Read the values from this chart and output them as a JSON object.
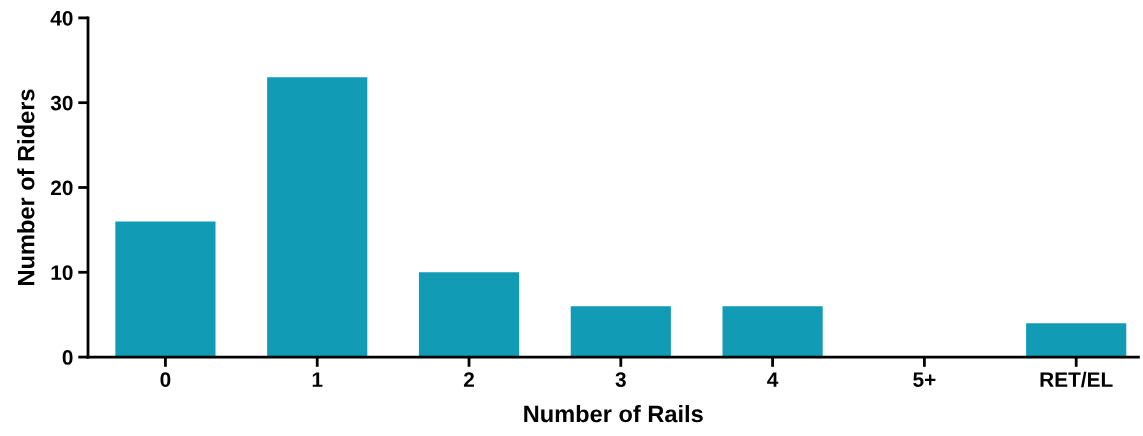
{
  "chart_data": {
    "type": "bar",
    "xlabel": "Number of Rails",
    "ylabel": "Number of Riders",
    "categories": [
      "0",
      "1",
      "2",
      "3",
      "4",
      "5+",
      "RET/EL"
    ],
    "values": [
      16,
      33,
      10,
      6,
      6,
      0,
      4
    ],
    "color": "#129bb5",
    "ylim": [
      0,
      40
    ],
    "yticks": [
      0,
      10,
      20,
      30,
      40
    ],
    "grid": false,
    "legend": false
  }
}
